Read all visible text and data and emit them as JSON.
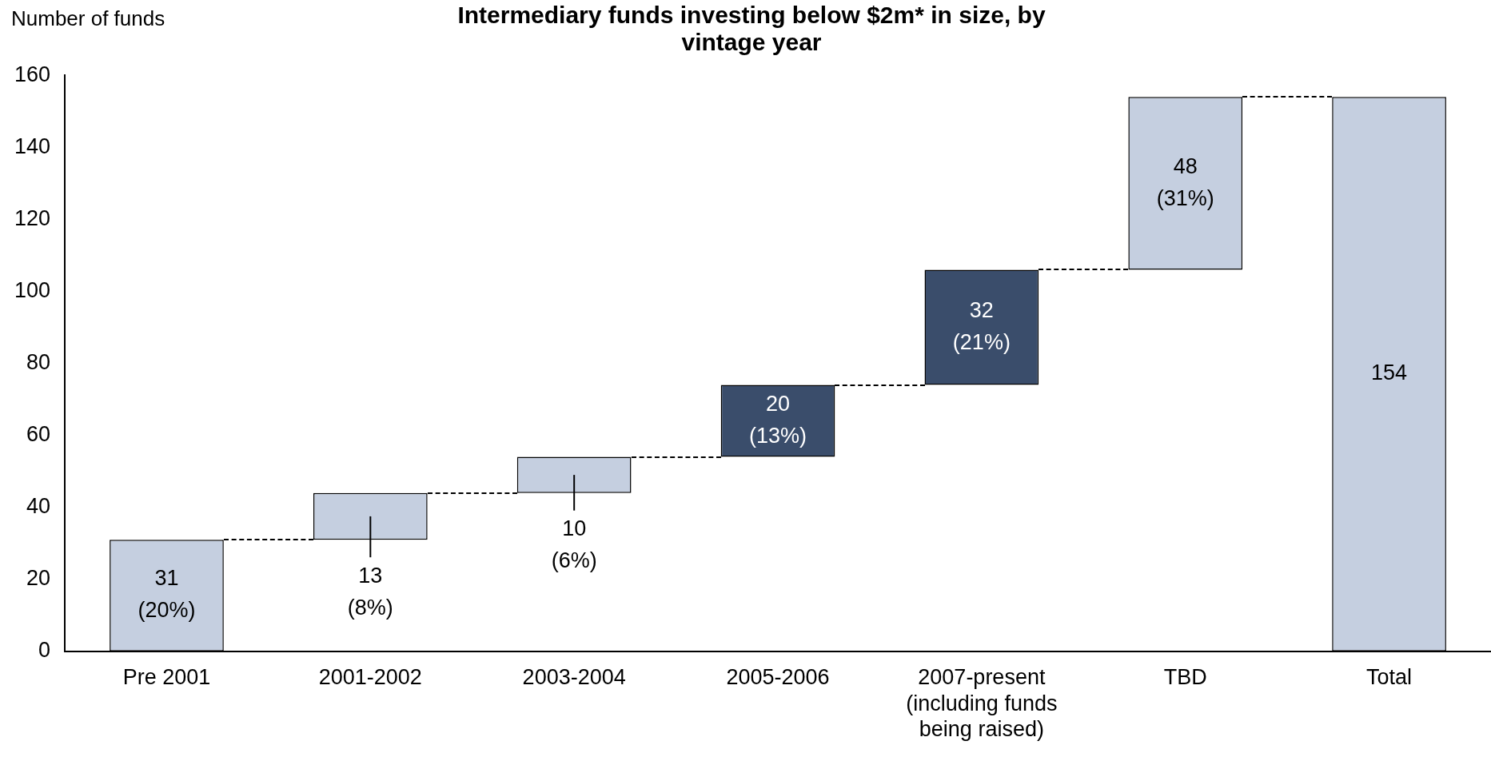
{
  "chart_data": {
    "type": "bar",
    "title": "Intermediary funds investing below $2m* in size, by vintage year",
    "ylabel": "Number of funds",
    "categories": [
      "Pre 2001",
      "2001-2002",
      "2003-2004",
      "2005-2006",
      "2007-present (including funds being raised)",
      "TBD",
      "Total"
    ],
    "values": [
      31,
      13,
      10,
      20,
      32,
      48,
      154
    ],
    "base": [
      0,
      31,
      44,
      54,
      74,
      106,
      0
    ],
    "colors": [
      "#c5cfe0",
      "#c5cfe0",
      "#c5cfe0",
      "#3a4d6b",
      "#3a4d6b",
      "#c5cfe0",
      "#c5cfe0"
    ],
    "value_labels": [
      "31 (20%)",
      "13 (8%)",
      "10 (6%)",
      "20 (13%)",
      "32 (21%)",
      "48 (31%)",
      "154"
    ],
    "ylim": [
      0,
      160
    ],
    "yticks": [
      0,
      20,
      40,
      60,
      80,
      100,
      120,
      140,
      160
    ],
    "grid": false,
    "legend": false
  }
}
